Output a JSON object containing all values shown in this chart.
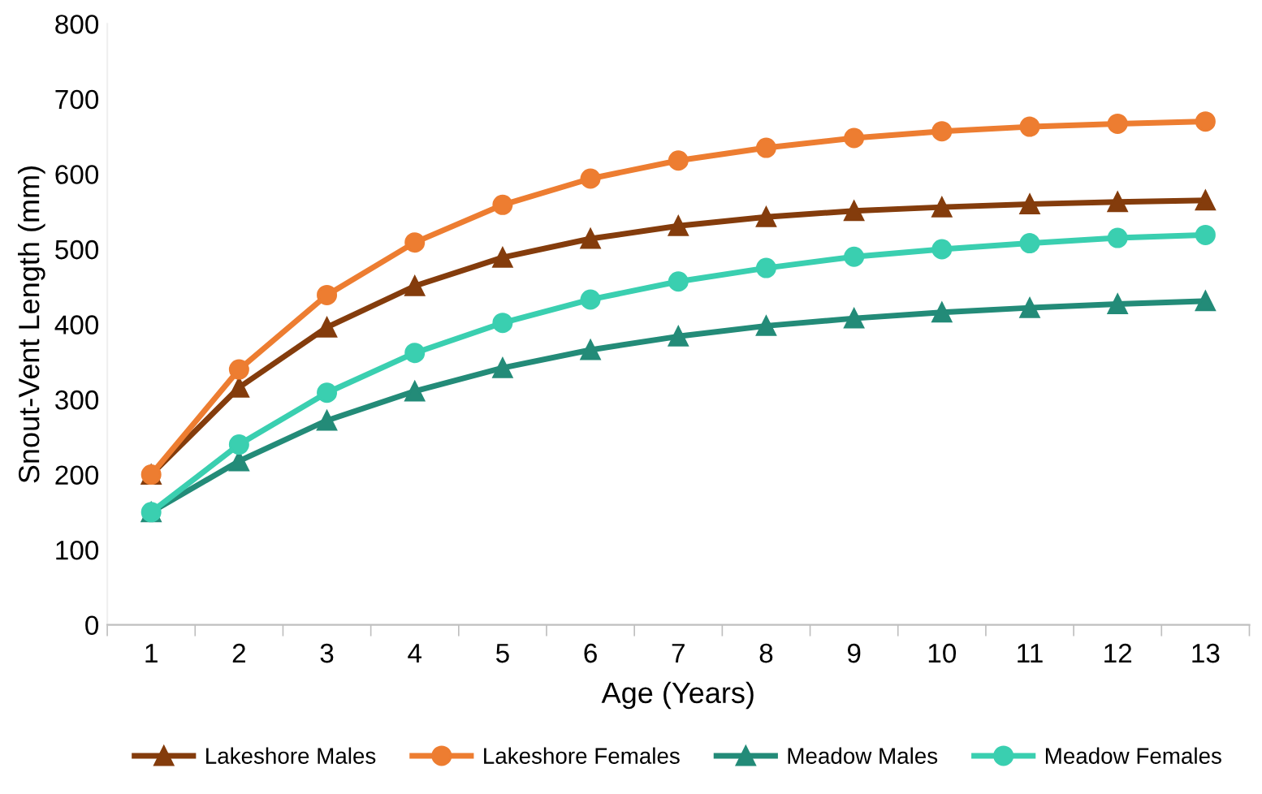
{
  "chart_data": {
    "type": "line",
    "xlabel": "Age (Years)",
    "ylabel": "Snout-Vent Length (mm)",
    "categories": [
      "1",
      "2",
      "3",
      "4",
      "5",
      "6",
      "7",
      "8",
      "9",
      "10",
      "11",
      "12",
      "13"
    ],
    "ylim": [
      0,
      800
    ],
    "yticks": [
      0,
      100,
      200,
      300,
      400,
      500,
      600,
      700,
      800
    ],
    "grid": false,
    "legend": "bottom",
    "series": [
      {
        "name": "Lakeshore Males",
        "color": "#843c0c",
        "marker": "triangle",
        "values": [
          200,
          316,
          396,
          451,
          489,
          514,
          531,
          543,
          551,
          556,
          560,
          563,
          565
        ]
      },
      {
        "name": "Lakeshore Females",
        "color": "#ed7d31",
        "marker": "circle",
        "values": [
          200,
          340,
          439,
          509,
          559,
          594,
          618,
          635,
          648,
          657,
          663,
          667,
          670
        ]
      },
      {
        "name": "Meadow Males",
        "color": "#238b78",
        "marker": "triangle",
        "values": [
          150,
          218,
          272,
          311,
          342,
          366,
          384,
          398,
          408,
          416,
          422,
          427,
          431
        ]
      },
      {
        "name": "Meadow Females",
        "color": "#3acfb0",
        "marker": "circle",
        "values": [
          150,
          240,
          309,
          362,
          402,
          433,
          457,
          475,
          490,
          500,
          508,
          515,
          519
        ]
      }
    ]
  }
}
